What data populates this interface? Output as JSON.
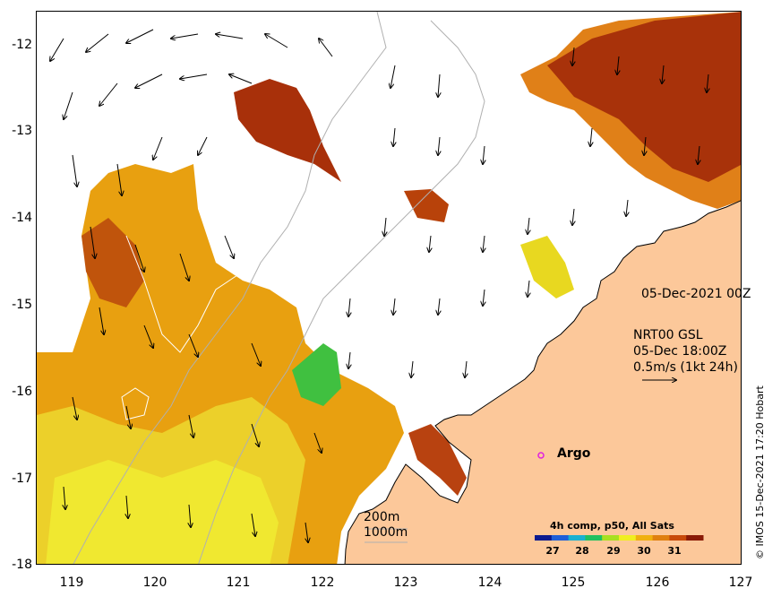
{
  "map": {
    "timestamp_top": "05-Dec-2021 00Z",
    "current_model": "NRT00 GSL",
    "current_time": "05-Dec 18:00Z",
    "current_scale": "0.5m/s (1kt 24h)",
    "isobath_200": "200m",
    "isobath_1000": "1000m",
    "argo_label": "Argo",
    "credit": "© IMOS 15-Dec-2021 17:20 Hobart",
    "x_ticks": [
      "119",
      "120",
      "121",
      "122",
      "123",
      "124",
      "125",
      "126",
      "127"
    ],
    "y_ticks": [
      "-12",
      "-13",
      "-14",
      "-15",
      "-16",
      "-17",
      "-18"
    ],
    "lon_range": [
      118.6,
      127.0
    ],
    "lat_range": [
      -11.6,
      -18.0
    ],
    "colorbar": {
      "title": "4h comp, p50, All Sats",
      "tick_labels": [
        "27",
        "28",
        "29",
        "30",
        "31"
      ],
      "colors": [
        "#0b1a8f",
        "#1f5fd8",
        "#19b0d0",
        "#20c060",
        "#a8e020",
        "#f0ee20",
        "#f0b010",
        "#e08010",
        "#c84a0a",
        "#8a1a06"
      ]
    },
    "colors": {
      "land": "#fcc89a",
      "sst_warm": "#e8a010",
      "sst_hot": "#b33c08",
      "sst_cool": "#e8e830",
      "argo": "#e020e0"
    }
  }
}
